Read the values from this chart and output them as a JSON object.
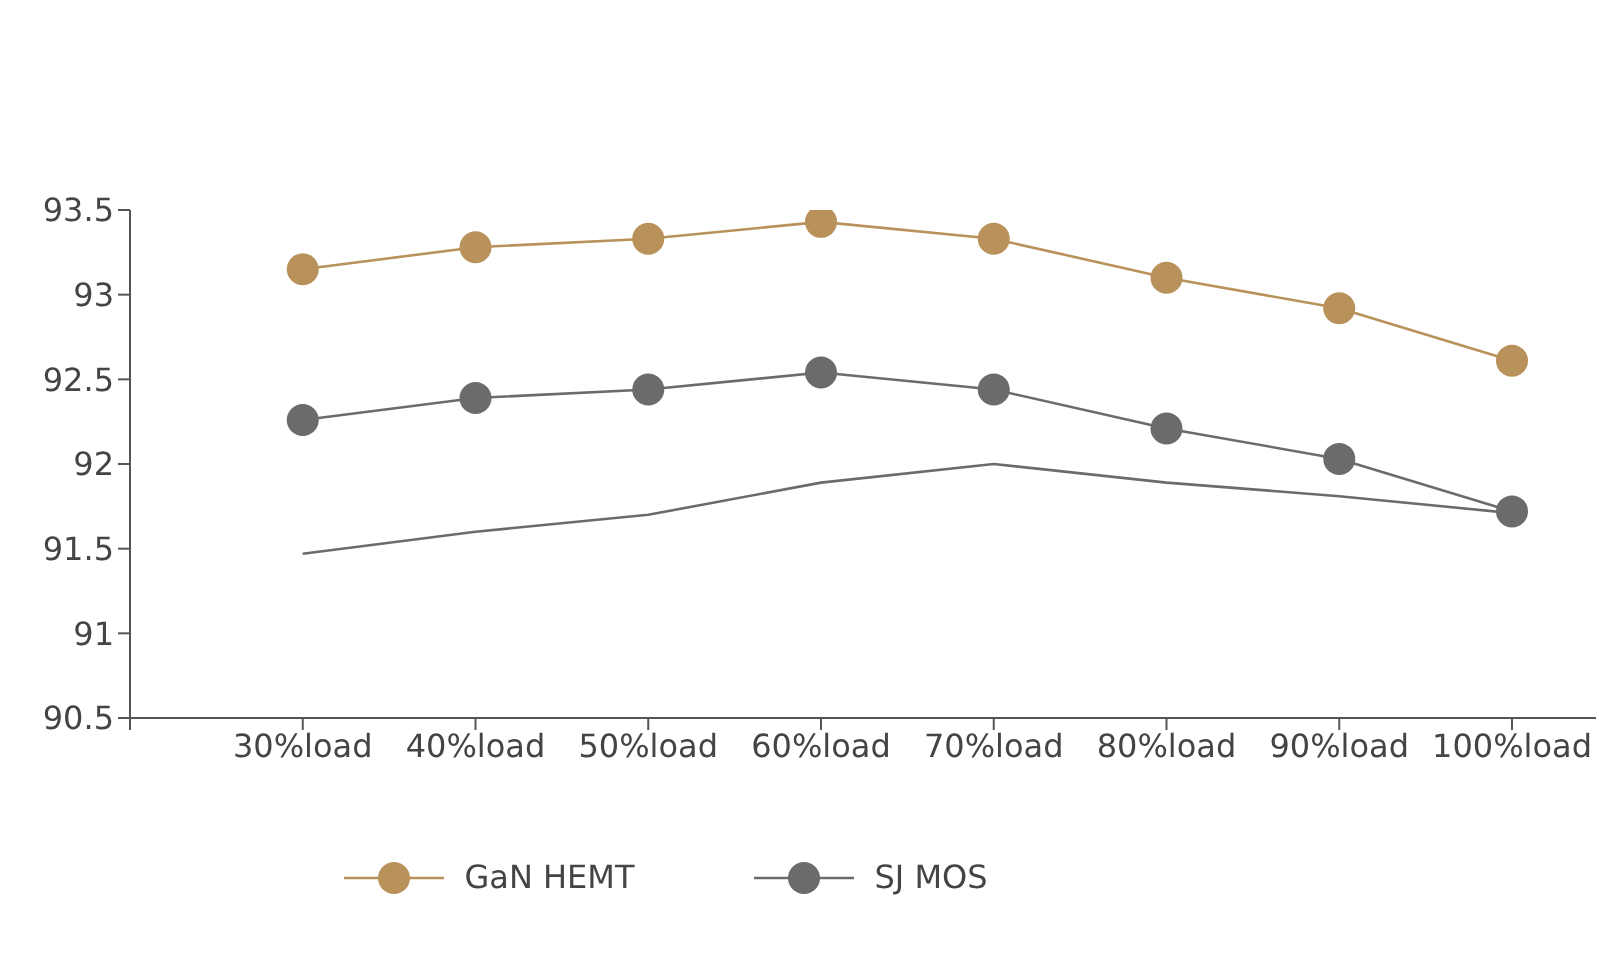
{
  "chart_data": {
    "type": "line",
    "categories": [
      null,
      "30%load",
      "40%load",
      "50%load",
      "60%load",
      "70%load",
      "80%load",
      "90%load",
      "100%load"
    ],
    "series": [
      {
        "name": "GaN HEMT",
        "color": "#b8925a",
        "values": [
          null,
          93.15,
          93.28,
          93.33,
          93.43,
          93.33,
          93.1,
          92.92,
          92.61
        ]
      },
      {
        "name": "SJ MOS",
        "color": "#6b6b6b",
        "values": [
          null,
          92.26,
          92.39,
          92.44,
          92.54,
          92.44,
          92.21,
          92.03,
          91.72
        ]
      },
      {
        "color": "#6b6b6b",
        "marker": "none",
        "values": [
          null,
          91.47,
          91.6,
          91.7,
          91.89,
          92.0,
          91.89,
          91.81,
          91.71
        ]
      }
    ],
    "ylim": [
      90.5,
      93.5
    ],
    "yticks": [
      90.5,
      91,
      91.5,
      92,
      92.5,
      93,
      93.5
    ],
    "grid": false,
    "legend": "bottom",
    "marker": "circle",
    "line_style": "solid"
  }
}
